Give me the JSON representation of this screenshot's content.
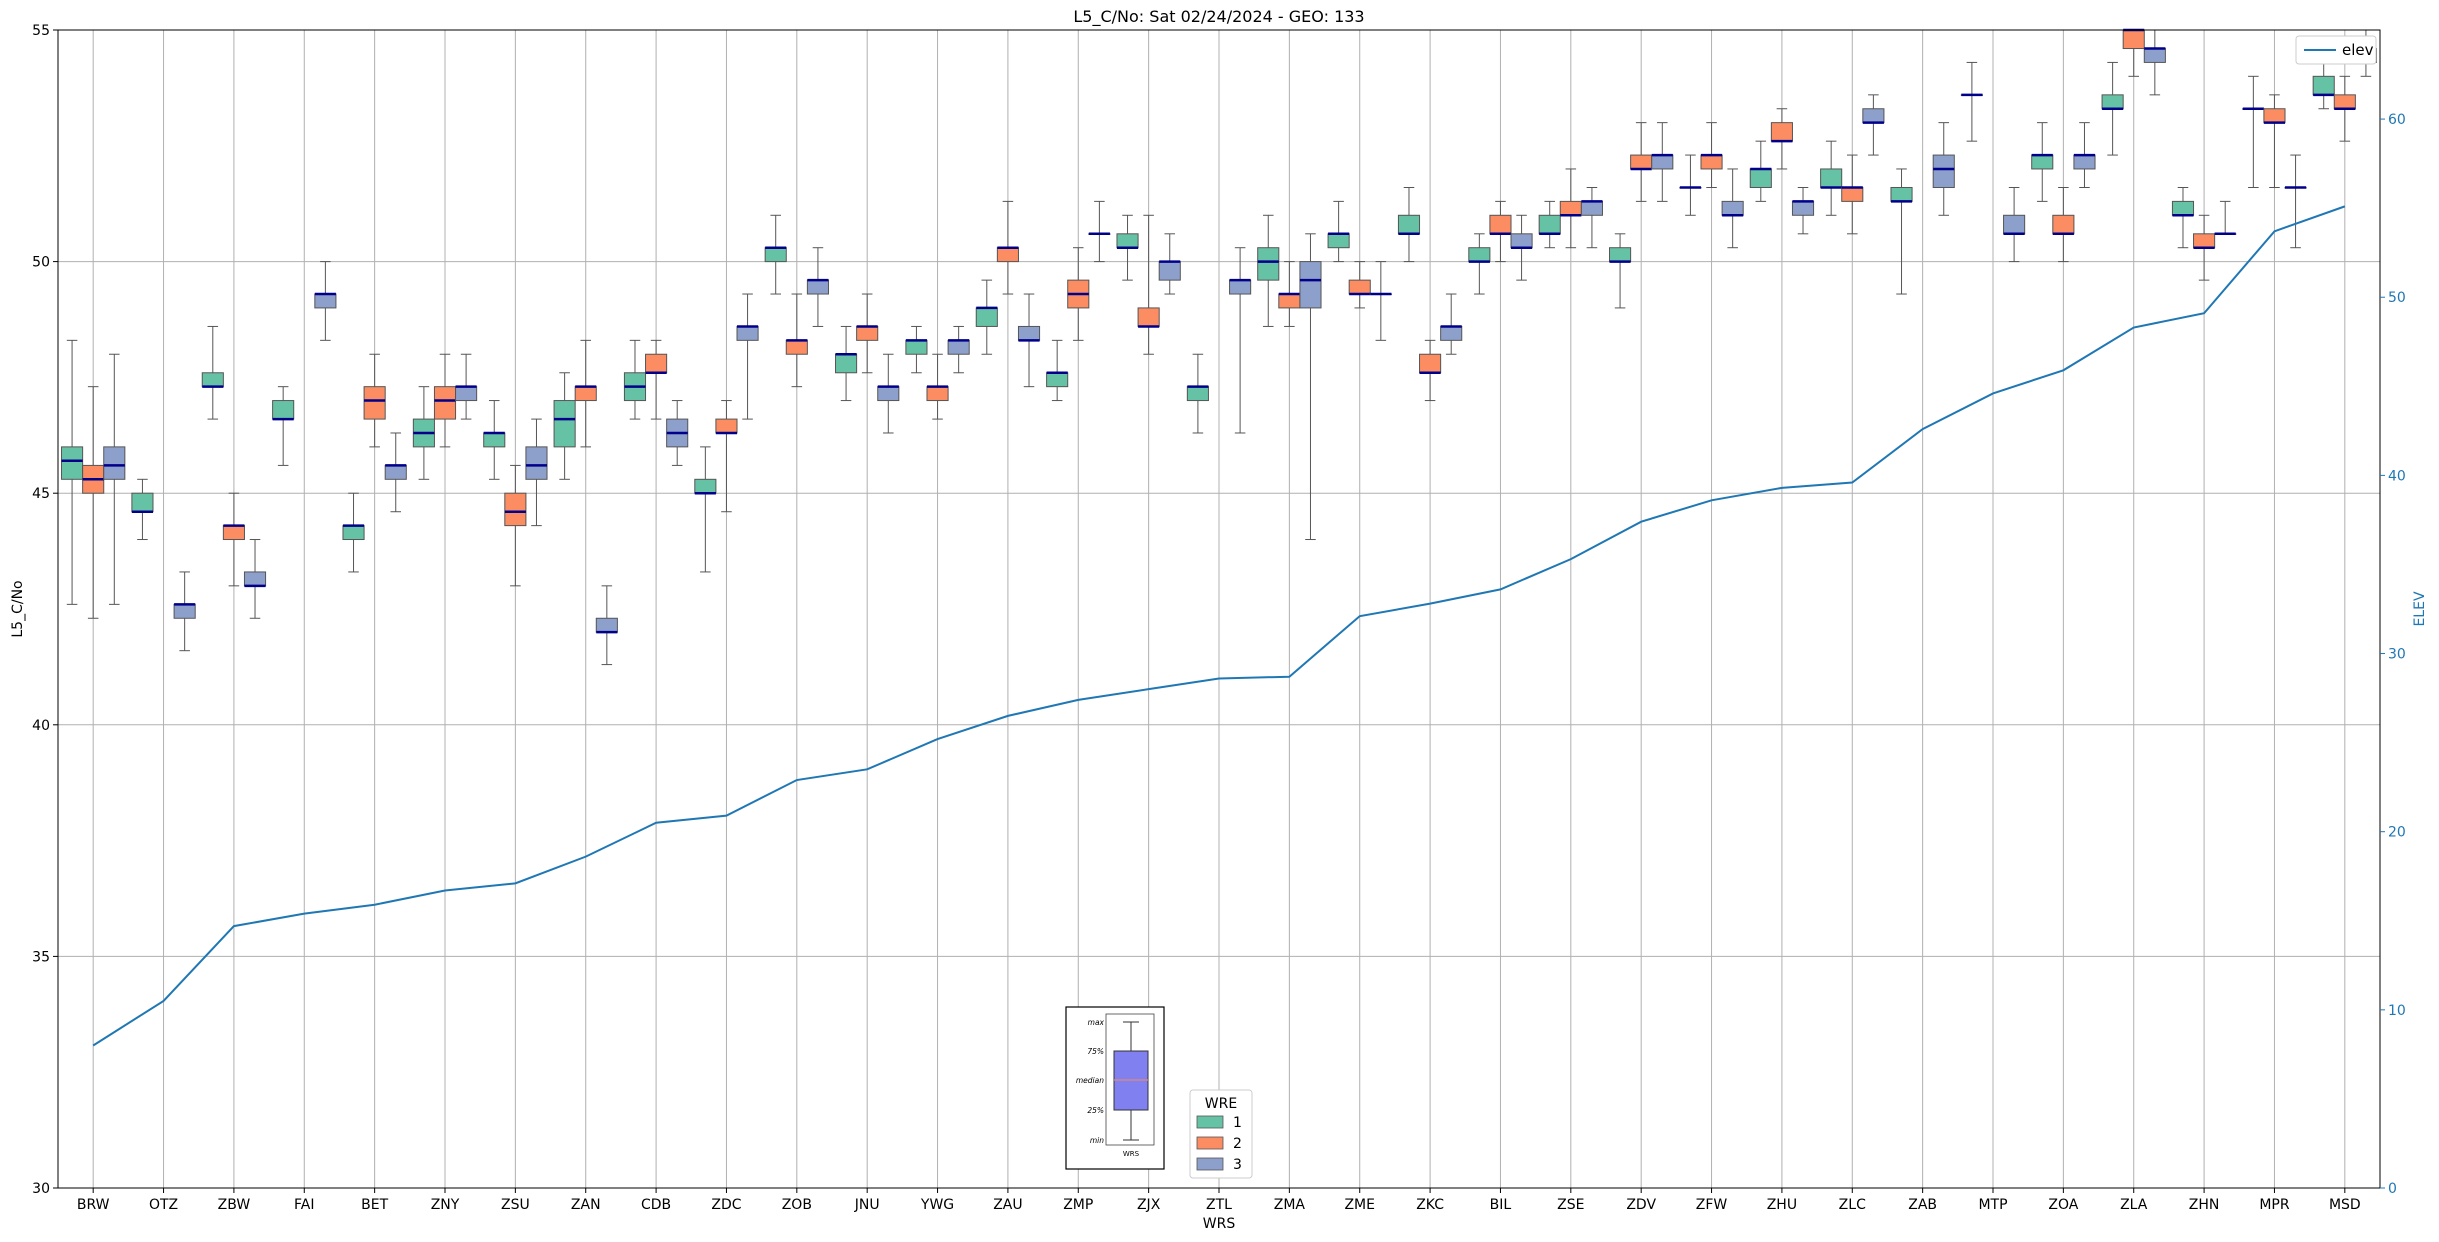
{
  "chart_data": {
    "type": "box",
    "title": "L5_C/No: Sat 02/24/2024 - GEO: 133",
    "xlabel": "WRS",
    "ylabel": "L5_C/No",
    "y2label": "ELEV",
    "ylim": [
      30,
      55
    ],
    "y2lim": [
      0,
      65
    ],
    "yticks": [
      "30",
      "35",
      "40",
      "45",
      "50",
      "55"
    ],
    "y2ticks": [
      "0",
      "10",
      "20",
      "30",
      "40",
      "50",
      "60"
    ],
    "grid": true,
    "categories": [
      "BRW",
      "OTZ",
      "ZBW",
      "FAI",
      "BET",
      "ZNY",
      "ZSU",
      "ZAN",
      "CDB",
      "ZDC",
      "ZOB",
      "JNU",
      "YWG",
      "ZAU",
      "ZMP",
      "ZJX",
      "ZTL",
      "ZMA",
      "ZME",
      "ZKC",
      "BIL",
      "ZSE",
      "ZDV",
      "ZFW",
      "ZHU",
      "ZLC",
      "ZAB",
      "MTP",
      "ZOA",
      "ZLA",
      "ZHN",
      "MPR",
      "MSD"
    ],
    "wre_legend": {
      "title": "WRE",
      "entries": [
        "1",
        "2",
        "3"
      ]
    },
    "colors": {
      "1": "#66c2a5",
      "2": "#fc8d62",
      "3": "#8da0cb",
      "median": "#00008b",
      "whisker": "#555555",
      "elev": "#1f77b4"
    },
    "series": [
      {
        "name": "1",
        "boxes": [
          {
            "cat": 0,
            "min": 42.6,
            "q1": 45.3,
            "med": 45.7,
            "q3": 46.0,
            "max": 48.3
          },
          {
            "cat": 1,
            "min": 44.0,
            "q1": 44.6,
            "med": 44.6,
            "q3": 45.0,
            "max": 45.3
          },
          {
            "cat": 2,
            "min": 46.6,
            "q1": 47.3,
            "med": 47.3,
            "q3": 47.6,
            "max": 48.6
          },
          {
            "cat": 3,
            "min": 45.6,
            "q1": 46.6,
            "med": 46.6,
            "q3": 47.0,
            "max": 47.3
          },
          {
            "cat": 4,
            "min": 43.3,
            "q1": 44.0,
            "med": 44.3,
            "q3": 44.3,
            "max": 45.0
          },
          {
            "cat": 5,
            "min": 45.3,
            "q1": 46.0,
            "med": 46.3,
            "q3": 46.6,
            "max": 47.3
          },
          {
            "cat": 6,
            "min": 45.3,
            "q1": 46.0,
            "med": 46.3,
            "q3": 46.3,
            "max": 47.0
          },
          {
            "cat": 7,
            "min": 45.3,
            "q1": 46.0,
            "med": 46.6,
            "q3": 47.0,
            "max": 47.6
          },
          {
            "cat": 8,
            "min": 46.6,
            "q1": 47.0,
            "med": 47.3,
            "q3": 47.6,
            "max": 48.3
          },
          {
            "cat": 9,
            "min": 43.3,
            "q1": 45.0,
            "med": 45.0,
            "q3": 45.3,
            "max": 46.0
          },
          {
            "cat": 10,
            "min": 49.3,
            "q1": 50.0,
            "med": 50.3,
            "q3": 50.3,
            "max": 51.0
          },
          {
            "cat": 11,
            "min": 47.0,
            "q1": 47.6,
            "med": 48.0,
            "q3": 48.0,
            "max": 48.6
          },
          {
            "cat": 12,
            "min": 47.6,
            "q1": 48.0,
            "med": 48.3,
            "q3": 48.3,
            "max": 48.6
          },
          {
            "cat": 13,
            "min": 48.0,
            "q1": 48.6,
            "med": 49.0,
            "q3": 49.0,
            "max": 49.6
          },
          {
            "cat": 14,
            "min": 47.0,
            "q1": 47.3,
            "med": 47.6,
            "q3": 47.6,
            "max": 48.3
          },
          {
            "cat": 15,
            "min": 49.6,
            "q1": 50.3,
            "med": 50.3,
            "q3": 50.6,
            "max": 51.0
          },
          {
            "cat": 16,
            "min": 46.3,
            "q1": 47.0,
            "med": 47.3,
            "q3": 47.3,
            "max": 48.0
          },
          {
            "cat": 17,
            "min": 48.6,
            "q1": 49.6,
            "med": 50.0,
            "q3": 50.3,
            "max": 51.0
          },
          {
            "cat": 18,
            "min": 50.0,
            "q1": 50.3,
            "med": 50.6,
            "q3": 50.6,
            "max": 51.3
          },
          {
            "cat": 19,
            "min": 50.0,
            "q1": 50.6,
            "med": 50.6,
            "q3": 51.0,
            "max": 51.6
          },
          {
            "cat": 20,
            "min": 49.3,
            "q1": 50.0,
            "med": 50.0,
            "q3": 50.3,
            "max": 50.6
          },
          {
            "cat": 21,
            "min": 50.3,
            "q1": 50.6,
            "med": 50.6,
            "q3": 51.0,
            "max": 51.3
          },
          {
            "cat": 22,
            "min": 49.0,
            "q1": 50.0,
            "med": 50.0,
            "q3": 50.3,
            "max": 50.6
          },
          {
            "cat": 23,
            "min": 51.0,
            "q1": 51.6,
            "med": 51.6,
            "q3": 51.6,
            "max": 52.3
          },
          {
            "cat": 24,
            "min": 51.3,
            "q1": 51.6,
            "med": 52.0,
            "q3": 52.0,
            "max": 52.6
          },
          {
            "cat": 25,
            "min": 51.0,
            "q1": 51.6,
            "med": 51.6,
            "q3": 52.0,
            "max": 52.6
          },
          {
            "cat": 26,
            "min": 49.3,
            "q1": 51.3,
            "med": 51.3,
            "q3": 51.6,
            "max": 52.0
          },
          {
            "cat": 27,
            "min": 52.6,
            "q1": 53.6,
            "med": 53.6,
            "q3": 53.6,
            "max": 54.3
          },
          {
            "cat": 28,
            "min": 51.3,
            "q1": 52.0,
            "med": 52.3,
            "q3": 52.3,
            "max": 53.0
          },
          {
            "cat": 29,
            "min": 52.3,
            "q1": 53.3,
            "med": 53.3,
            "q3": 53.6,
            "max": 54.3
          },
          {
            "cat": 30,
            "min": 50.3,
            "q1": 51.0,
            "med": 51.0,
            "q3": 51.3,
            "max": 51.6
          },
          {
            "cat": 31,
            "min": 51.6,
            "q1": 53.3,
            "med": 53.3,
            "q3": 53.3,
            "max": 54.0
          },
          {
            "cat": 32,
            "min": 53.3,
            "q1": 53.6,
            "med": 53.6,
            "q3": 54.0,
            "max": 54.3
          }
        ]
      },
      {
        "name": "2",
        "boxes": [
          {
            "cat": 0,
            "min": 42.3,
            "q1": 45.0,
            "med": 45.3,
            "q3": 45.6,
            "max": 47.3
          },
          {
            "cat": 2,
            "min": 43.0,
            "q1": 44.0,
            "med": 44.3,
            "q3": 44.3,
            "max": 45.0
          },
          {
            "cat": 4,
            "min": 46.0,
            "q1": 46.6,
            "med": 47.0,
            "q3": 47.3,
            "max": 48.0
          },
          {
            "cat": 5,
            "min": 46.0,
            "q1": 46.6,
            "med": 47.0,
            "q3": 47.3,
            "max": 48.0
          },
          {
            "cat": 6,
            "min": 43.0,
            "q1": 44.3,
            "med": 44.6,
            "q3": 45.0,
            "max": 45.6
          },
          {
            "cat": 7,
            "min": 46.0,
            "q1": 47.0,
            "med": 47.3,
            "q3": 47.3,
            "max": 48.3
          },
          {
            "cat": 8,
            "min": 46.6,
            "q1": 47.6,
            "med": 47.6,
            "q3": 48.0,
            "max": 48.3
          },
          {
            "cat": 9,
            "min": 44.6,
            "q1": 46.3,
            "med": 46.3,
            "q3": 46.6,
            "max": 47.0
          },
          {
            "cat": 10,
            "min": 47.3,
            "q1": 48.0,
            "med": 48.3,
            "q3": 48.3,
            "max": 49.3
          },
          {
            "cat": 11,
            "min": 47.6,
            "q1": 48.3,
            "med": 48.6,
            "q3": 48.6,
            "max": 49.3
          },
          {
            "cat": 12,
            "min": 46.6,
            "q1": 47.0,
            "med": 47.3,
            "q3": 47.3,
            "max": 48.0
          },
          {
            "cat": 13,
            "min": 49.3,
            "q1": 50.0,
            "med": 50.3,
            "q3": 50.3,
            "max": 51.3
          },
          {
            "cat": 14,
            "min": 48.3,
            "q1": 49.0,
            "med": 49.3,
            "q3": 49.6,
            "max": 50.3
          },
          {
            "cat": 15,
            "min": 48.0,
            "q1": 48.6,
            "med": 48.6,
            "q3": 49.0,
            "max": 51.0
          },
          {
            "cat": 17,
            "min": 48.6,
            "q1": 49.0,
            "med": 49.3,
            "q3": 49.3,
            "max": 50.0
          },
          {
            "cat": 18,
            "min": 49.0,
            "q1": 49.3,
            "med": 49.3,
            "q3": 49.6,
            "max": 50.0
          },
          {
            "cat": 19,
            "min": 47.0,
            "q1": 47.6,
            "med": 47.6,
            "q3": 48.0,
            "max": 48.3
          },
          {
            "cat": 20,
            "min": 50.0,
            "q1": 50.6,
            "med": 50.6,
            "q3": 51.0,
            "max": 51.3
          },
          {
            "cat": 21,
            "min": 50.3,
            "q1": 51.0,
            "med": 51.0,
            "q3": 51.3,
            "max": 52.0
          },
          {
            "cat": 22,
            "min": 51.3,
            "q1": 52.0,
            "med": 52.0,
            "q3": 52.3,
            "max": 53.0
          },
          {
            "cat": 23,
            "min": 51.6,
            "q1": 52.0,
            "med": 52.3,
            "q3": 52.3,
            "max": 53.0
          },
          {
            "cat": 24,
            "min": 52.0,
            "q1": 52.6,
            "med": 52.6,
            "q3": 53.0,
            "max": 53.3
          },
          {
            "cat": 25,
            "min": 50.6,
            "q1": 51.3,
            "med": 51.6,
            "q3": 51.6,
            "max": 52.3
          },
          {
            "cat": 28,
            "min": 50.0,
            "q1": 50.6,
            "med": 50.6,
            "q3": 51.0,
            "max": 51.6
          },
          {
            "cat": 29,
            "min": 54.0,
            "q1": 54.6,
            "med": 55.0,
            "q3": 55.0,
            "max": 55.0
          },
          {
            "cat": 30,
            "min": 49.6,
            "q1": 50.3,
            "med": 50.3,
            "q3": 50.6,
            "max": 51.0
          },
          {
            "cat": 31,
            "min": 51.6,
            "q1": 53.0,
            "med": 53.0,
            "q3": 53.3,
            "max": 53.6
          },
          {
            "cat": 32,
            "min": 52.6,
            "q1": 53.3,
            "med": 53.3,
            "q3": 53.6,
            "max": 54.0
          }
        ]
      },
      {
        "name": "3",
        "boxes": [
          {
            "cat": 0,
            "min": 42.6,
            "q1": 45.3,
            "med": 45.6,
            "q3": 46.0,
            "max": 48.0
          },
          {
            "cat": 1,
            "min": 41.6,
            "q1": 42.3,
            "med": 42.6,
            "q3": 42.6,
            "max": 43.3
          },
          {
            "cat": 2,
            "min": 42.3,
            "q1": 43.0,
            "med": 43.0,
            "q3": 43.3,
            "max": 44.0
          },
          {
            "cat": 3,
            "min": 48.3,
            "q1": 49.0,
            "med": 49.3,
            "q3": 49.3,
            "max": 50.0
          },
          {
            "cat": 4,
            "min": 44.6,
            "q1": 45.3,
            "med": 45.6,
            "q3": 45.6,
            "max": 46.3
          },
          {
            "cat": 5,
            "min": 46.6,
            "q1": 47.0,
            "med": 47.3,
            "q3": 47.3,
            "max": 48.0
          },
          {
            "cat": 6,
            "min": 44.3,
            "q1": 45.3,
            "med": 45.6,
            "q3": 46.0,
            "max": 46.6
          },
          {
            "cat": 7,
            "min": 41.3,
            "q1": 42.0,
            "med": 42.0,
            "q3": 42.3,
            "max": 43.0
          },
          {
            "cat": 8,
            "min": 45.6,
            "q1": 46.0,
            "med": 46.3,
            "q3": 46.6,
            "max": 47.0
          },
          {
            "cat": 9,
            "min": 46.6,
            "q1": 48.3,
            "med": 48.6,
            "q3": 48.6,
            "max": 49.3
          },
          {
            "cat": 10,
            "min": 48.6,
            "q1": 49.3,
            "med": 49.6,
            "q3": 49.6,
            "max": 50.3
          },
          {
            "cat": 11,
            "min": 46.3,
            "q1": 47.0,
            "med": 47.3,
            "q3": 47.3,
            "max": 48.0
          },
          {
            "cat": 12,
            "min": 47.6,
            "q1": 48.0,
            "med": 48.3,
            "q3": 48.3,
            "max": 48.6
          },
          {
            "cat": 13,
            "min": 47.3,
            "q1": 48.3,
            "med": 48.3,
            "q3": 48.6,
            "max": 49.3
          },
          {
            "cat": 14,
            "min": 50.0,
            "q1": 50.6,
            "med": 50.6,
            "q3": 50.6,
            "max": 51.3
          },
          {
            "cat": 15,
            "min": 49.3,
            "q1": 49.6,
            "med": 50.0,
            "q3": 50.0,
            "max": 50.6
          },
          {
            "cat": 16,
            "min": 46.3,
            "q1": 49.3,
            "med": 49.6,
            "q3": 49.6,
            "max": 50.3
          },
          {
            "cat": 17,
            "min": 44.0,
            "q1": 49.0,
            "med": 49.6,
            "q3": 50.0,
            "max": 50.6
          },
          {
            "cat": 18,
            "min": 48.3,
            "q1": 49.3,
            "med": 49.3,
            "q3": 49.3,
            "max": 50.0
          },
          {
            "cat": 19,
            "min": 48.0,
            "q1": 48.3,
            "med": 48.6,
            "q3": 48.6,
            "max": 49.3
          },
          {
            "cat": 20,
            "min": 49.6,
            "q1": 50.3,
            "med": 50.3,
            "q3": 50.6,
            "max": 51.0
          },
          {
            "cat": 21,
            "min": 50.3,
            "q1": 51.0,
            "med": 51.3,
            "q3": 51.3,
            "max": 51.6
          },
          {
            "cat": 22,
            "min": 51.3,
            "q1": 52.0,
            "med": 52.3,
            "q3": 52.3,
            "max": 53.0
          },
          {
            "cat": 23,
            "min": 50.3,
            "q1": 51.0,
            "med": 51.0,
            "q3": 51.3,
            "max": 52.0
          },
          {
            "cat": 24,
            "min": 50.6,
            "q1": 51.0,
            "med": 51.3,
            "q3": 51.3,
            "max": 51.6
          },
          {
            "cat": 25,
            "min": 52.3,
            "q1": 53.0,
            "med": 53.0,
            "q3": 53.3,
            "max": 53.6
          },
          {
            "cat": 26,
            "min": 51.0,
            "q1": 51.6,
            "med": 52.0,
            "q3": 52.3,
            "max": 53.0
          },
          {
            "cat": 27,
            "min": 50.0,
            "q1": 50.6,
            "med": 50.6,
            "q3": 51.0,
            "max": 51.6
          },
          {
            "cat": 28,
            "min": 51.6,
            "q1": 52.0,
            "med": 52.3,
            "q3": 52.3,
            "max": 53.0
          },
          {
            "cat": 29,
            "min": 53.6,
            "q1": 54.3,
            "med": 54.6,
            "q3": 54.6,
            "max": 55.0
          },
          {
            "cat": 30,
            "min": 50.6,
            "q1": 50.6,
            "med": 50.6,
            "q3": 50.6,
            "max": 51.3
          },
          {
            "cat": 31,
            "min": 50.3,
            "q1": 51.6,
            "med": 51.6,
            "q3": 51.6,
            "max": 52.3
          },
          {
            "cat": 32,
            "min": 54.0,
            "q1": 54.3,
            "med": 54.6,
            "q3": 54.6,
            "max": 55.0
          }
        ]
      }
    ],
    "elev": {
      "name": "elev",
      "values": [
        8.0,
        10.5,
        14.7,
        15.4,
        15.9,
        16.7,
        17.1,
        18.6,
        20.5,
        20.9,
        22.9,
        23.5,
        25.2,
        26.5,
        27.4,
        28.0,
        28.6,
        28.7,
        32.1,
        32.8,
        33.6,
        35.3,
        37.4,
        38.6,
        39.3,
        39.6,
        42.6,
        44.6,
        45.9,
        48.3,
        49.1,
        53.7,
        55.1
      ]
    },
    "legend_placement": "top-right",
    "explainer_inset": {
      "labels": [
        "max",
        "75%",
        "median",
        "25%",
        "min"
      ],
      "footer": "WRS"
    }
  }
}
